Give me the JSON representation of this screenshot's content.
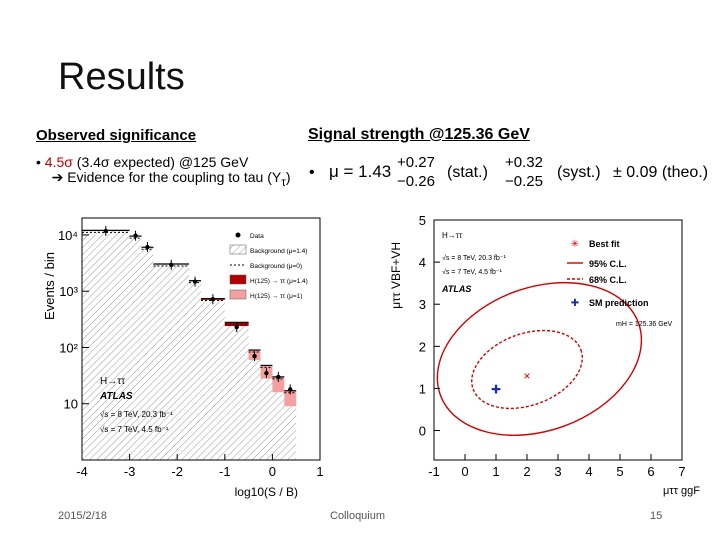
{
  "slide": {
    "title": "Results",
    "left_heading": "Observed significance",
    "left_bullet": {
      "bullet": "•",
      "sig_value": "4.5σ",
      "expected": "(3.4σ expected) @125 GeV",
      "arrow": "➔",
      "line2": "Evidence for the coupling to tau (Y",
      "sub": "τ",
      "close": ")"
    },
    "right_heading": "Signal strength @125.36 GeV",
    "right_bullet": {
      "bullet": "•",
      "mu": "μ = 1.43",
      "stat_up": "+0.27",
      "stat_dn": "−0.26",
      "stat_label": "(stat.)",
      "syst_up": "+0.32",
      "syst_dn": "−0.25",
      "syst_label": "(syst.)",
      "theo": "± 0.09 (theo.)"
    },
    "footer": {
      "date": "2015/2/18",
      "center": "Colloquium",
      "page": "15"
    }
  },
  "chart_data": [
    {
      "type": "bar",
      "ylabel": "Events / bin",
      "xlabel": "log10(S / B)",
      "xlim": [
        -4,
        1
      ],
      "ylog": true,
      "ylim": [
        1,
        20000
      ],
      "x_ticks": [
        "-4",
        "-3",
        "-2",
        "-1",
        "0",
        "1"
      ],
      "y_ticks": [
        "10",
        "10²",
        "10³",
        "10⁴"
      ],
      "bin_edges": [
        -4.0,
        -3.0,
        -2.75,
        -2.5,
        -1.75,
        -1.5,
        -1.0,
        -0.5,
        -0.25,
        0.0,
        0.25,
        0.5
      ],
      "background": [
        12000,
        9500,
        6000,
        3000,
        1500,
        700,
        240,
        60,
        28,
        16,
        9
      ],
      "signal_mu_1_4": [
        40,
        40,
        40,
        40,
        40,
        40,
        40,
        30,
        20,
        14,
        8
      ],
      "data": [
        11800,
        9700,
        6100,
        2950,
        1480,
        720,
        230,
        70,
        35,
        30,
        18
      ],
      "legend": [
        "Data",
        "Background (μ=1.4)",
        "Background (μ=0)",
        "H(125) → ττ (μ=1.4)",
        "H(125) → ττ (μ=1)"
      ],
      "annotations": [
        "H→ττ",
        "ATLAS",
        "√s = 8 TeV, 20.3 fb⁻¹",
        "√s = 7 TeV, 4.5 fb⁻¹"
      ]
    },
    {
      "type": "scatter",
      "xlabel": "μττ ggF",
      "ylabel": "μττ VBF+VH",
      "xlim": [
        -1,
        7
      ],
      "ylim": [
        -0.7,
        5
      ],
      "x_ticks": [
        "-1",
        "0",
        "1",
        "2",
        "3",
        "4",
        "5",
        "6",
        "7"
      ],
      "y_ticks": [
        "0",
        "1",
        "2",
        "3",
        "4",
        "5"
      ],
      "best_fit": [
        2.0,
        1.3
      ],
      "sm_prediction": [
        1.0,
        1.0
      ],
      "contour_95": {
        "center": [
          2.4,
          1.7
        ],
        "rx": 3.4,
        "ry": 1.7,
        "angle_deg": -20
      },
      "contour_68": {
        "center": [
          2.0,
          1.45
        ],
        "rx": 1.85,
        "ry": 0.85,
        "angle_deg": -20
      },
      "legend": [
        "Best fit",
        "95% C.L.",
        "68% C.L.",
        "SM prediction"
      ],
      "annotations": [
        "H→ττ",
        "√s = 8 TeV, 20.3 fb⁻¹",
        "√s = 7 TeV, 4.5 fb⁻¹",
        "ATLAS",
        "mH = 125.36 GeV"
      ]
    }
  ]
}
